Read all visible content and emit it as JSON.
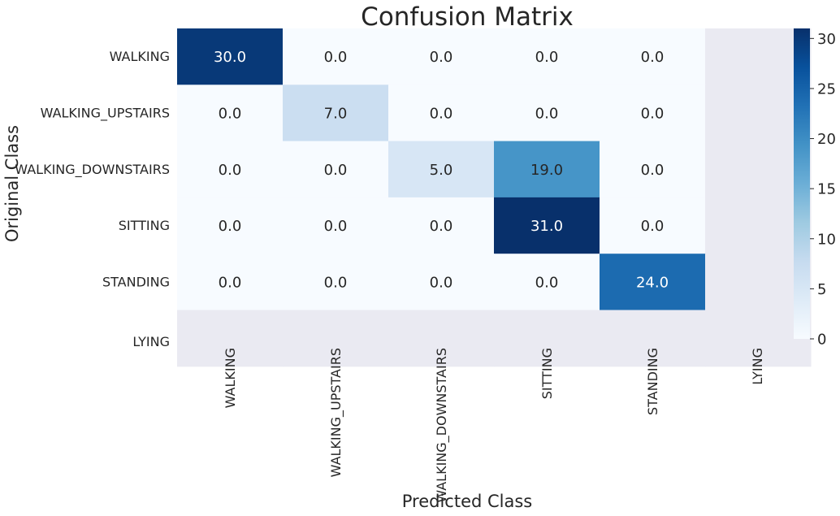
{
  "chart_data": {
    "type": "heatmap",
    "title": "Confusion Matrix",
    "xlabel": "Predicted Class",
    "ylabel": "Original Class",
    "x_categories": [
      "WALKING",
      "WALKING_UPSTAIRS",
      "WALKING_DOWNSTAIRS",
      "SITTING",
      "STANDING",
      "LYING"
    ],
    "y_categories": [
      "WALKING",
      "WALKING_UPSTAIRS",
      "WALKING_DOWNSTAIRS",
      "SITTING",
      "STANDING",
      "LYING"
    ],
    "values": [
      [
        30.0,
        0.0,
        0.0,
        0.0,
        0.0,
        null
      ],
      [
        0.0,
        7.0,
        0.0,
        0.0,
        0.0,
        null
      ],
      [
        0.0,
        0.0,
        5.0,
        19.0,
        0.0,
        null
      ],
      [
        0.0,
        0.0,
        0.0,
        31.0,
        0.0,
        null
      ],
      [
        0.0,
        0.0,
        0.0,
        0.0,
        24.0,
        null
      ],
      [
        null,
        null,
        null,
        null,
        null,
        null
      ]
    ],
    "cell_labels": [
      [
        "30.0",
        "0.0",
        "0.0",
        "0.0",
        "0.0",
        ""
      ],
      [
        "0.0",
        "7.0",
        "0.0",
        "0.0",
        "0.0",
        ""
      ],
      [
        "0.0",
        "0.0",
        "5.0",
        "19.0",
        "0.0",
        ""
      ],
      [
        "0.0",
        "0.0",
        "0.0",
        "31.0",
        "0.0",
        ""
      ],
      [
        "0.0",
        "0.0",
        "0.0",
        "0.0",
        "24.0",
        ""
      ],
      [
        "",
        "",
        "",
        "",
        "",
        ""
      ]
    ],
    "colormap": "Blues",
    "color_range": [
      0,
      31
    ],
    "colorbar_ticks": [
      "0",
      "5",
      "10",
      "15",
      "20",
      "25",
      "30"
    ],
    "colorbar_tick_values": [
      0,
      5,
      10,
      15,
      20,
      25,
      30
    ],
    "missing_color": "#eaeaf2",
    "colors": {
      "low": "#f7fbff",
      "high": "#08306b",
      "text_dark": "#262626",
      "text_light": "#ffffff"
    }
  }
}
